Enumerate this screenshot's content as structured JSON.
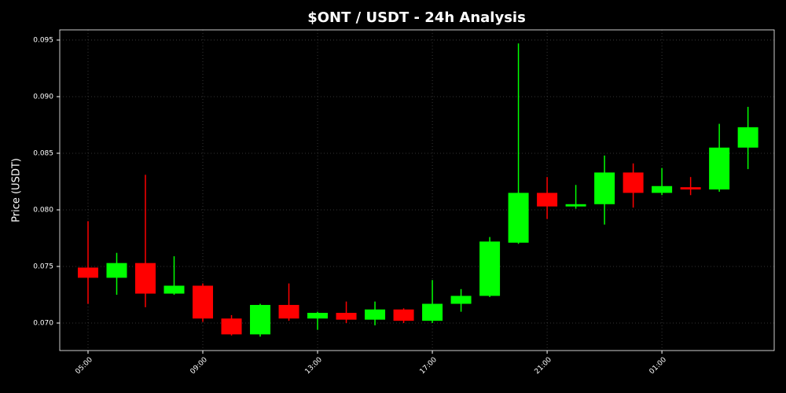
{
  "chart_data": {
    "type": "candlestick",
    "title": "$ONT / USDT - 24h Analysis",
    "y_label": "Price (USDT)",
    "categories": [
      "05:00",
      null,
      null,
      null,
      "09:00",
      null,
      null,
      null,
      "13:00",
      null,
      null,
      null,
      "17:00",
      null,
      null,
      null,
      "21:00",
      null,
      null,
      null,
      "01:00",
      null,
      null,
      null
    ],
    "open": [
      0.0749,
      0.074,
      0.0753,
      0.0726,
      0.0733,
      0.0704,
      0.069,
      0.0716,
      0.0704,
      0.0709,
      0.0703,
      0.0712,
      0.0702,
      0.0717,
      0.0724,
      0.0771,
      0.0815,
      0.0803,
      0.0805,
      0.0833,
      0.0815,
      0.082,
      0.0818,
      0.0855
    ],
    "high": [
      0.079,
      0.0762,
      0.0831,
      0.0759,
      0.0735,
      0.0707,
      0.0717,
      0.0735,
      0.071,
      0.0719,
      0.0719,
      0.0713,
      0.0738,
      0.073,
      0.0776,
      0.0947,
      0.0829,
      0.0822,
      0.0848,
      0.0841,
      0.0837,
      0.0829,
      0.0876,
      0.0891
    ],
    "low": [
      0.0717,
      0.0725,
      0.0714,
      0.0725,
      0.0701,
      0.0689,
      0.0688,
      0.0702,
      0.0694,
      0.07,
      0.0698,
      0.07,
      0.07,
      0.071,
      0.0723,
      0.077,
      0.0792,
      0.0801,
      0.0787,
      0.0802,
      0.0813,
      0.0813,
      0.0816,
      0.0836
    ],
    "close": [
      0.074,
      0.0753,
      0.0726,
      0.0733,
      0.0704,
      0.069,
      0.0716,
      0.0704,
      0.0709,
      0.0703,
      0.0712,
      0.0702,
      0.0717,
      0.0724,
      0.0772,
      0.0815,
      0.0803,
      0.0805,
      0.0833,
      0.0815,
      0.0821,
      0.0818,
      0.0855,
      0.0873
    ],
    "up_color": "#00ff00",
    "down_color": "#ff0000",
    "ylim": [
      0.06757,
      0.0959
    ],
    "yticks": [
      {
        "value": 0.07,
        "label": "0.070"
      },
      0.075,
      {
        "value": 0.08,
        "label": "0.080"
      },
      0.085,
      {
        "value": 0.09,
        "label": "0.090"
      },
      0.095
    ],
    "grid": true
  }
}
